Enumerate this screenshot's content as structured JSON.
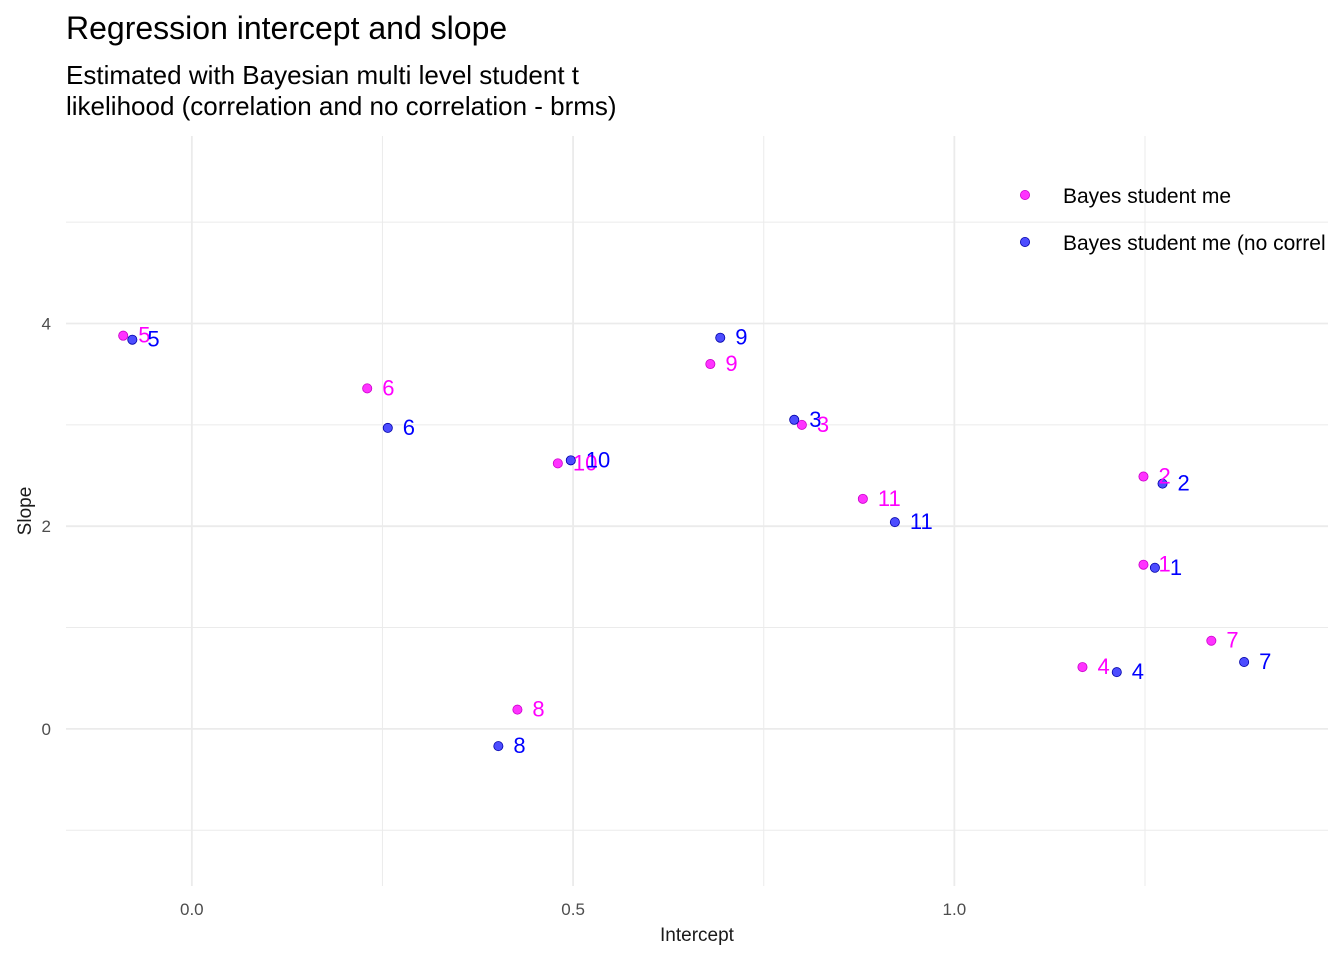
{
  "chart_data": {
    "type": "scatter",
    "title": "Regression intercept and slope",
    "subtitle": [
      "Estimated with Bayesian multi level student t",
      "likelihood (correlation and no correlation - brms)"
    ],
    "xlabel": "Intercept",
    "ylabel": "Slope",
    "xlim": [
      -0.165,
      1.49
    ],
    "ylim": [
      -1.55,
      5.85
    ],
    "x_ticks": [
      0.0,
      0.5,
      1.0
    ],
    "x_tick_labels": [
      "0.0",
      "0.5",
      "1.0"
    ],
    "y_ticks": [
      0,
      2,
      4
    ],
    "y_tick_labels": [
      "0",
      "2",
      "4"
    ],
    "grid": true,
    "legend_position": "top-right",
    "series": [
      {
        "name": "Bayes student me",
        "color": "#ff33ff",
        "outline": "#cc00cc",
        "label_color": "#ff00ff",
        "points": [
          {
            "id": "1",
            "x": 1.248,
            "y": 1.62
          },
          {
            "id": "2",
            "x": 1.248,
            "y": 2.49
          },
          {
            "id": "3",
            "x": 0.8,
            "y": 3.0
          },
          {
            "id": "4",
            "x": 1.168,
            "y": 0.61
          },
          {
            "id": "5",
            "x": -0.09,
            "y": 3.88
          },
          {
            "id": "6",
            "x": 0.23,
            "y": 3.36
          },
          {
            "id": "7",
            "x": 1.337,
            "y": 0.87
          },
          {
            "id": "8",
            "x": 0.427,
            "y": 0.19
          },
          {
            "id": "9",
            "x": 0.68,
            "y": 3.6
          },
          {
            "id": "10",
            "x": 0.48,
            "y": 2.62
          },
          {
            "id": "11",
            "x": 0.88,
            "y": 2.27
          }
        ]
      },
      {
        "name": "Bayes student me (no correl",
        "color": "#4d4dff",
        "outline": "#0000aa",
        "label_color": "#0000ff",
        "points": [
          {
            "id": "1",
            "x": 1.263,
            "y": 1.59
          },
          {
            "id": "2",
            "x": 1.273,
            "y": 2.42
          },
          {
            "id": "3",
            "x": 0.79,
            "y": 3.05
          },
          {
            "id": "4",
            "x": 1.213,
            "y": 0.56
          },
          {
            "id": "5",
            "x": -0.078,
            "y": 3.84
          },
          {
            "id": "6",
            "x": 0.257,
            "y": 2.97
          },
          {
            "id": "7",
            "x": 1.38,
            "y": 0.66
          },
          {
            "id": "8",
            "x": 0.402,
            "y": -0.17
          },
          {
            "id": "9",
            "x": 0.693,
            "y": 3.86
          },
          {
            "id": "10",
            "x": 0.497,
            "y": 2.65
          },
          {
            "id": "11",
            "x": 0.922,
            "y": 2.04
          }
        ]
      }
    ]
  }
}
